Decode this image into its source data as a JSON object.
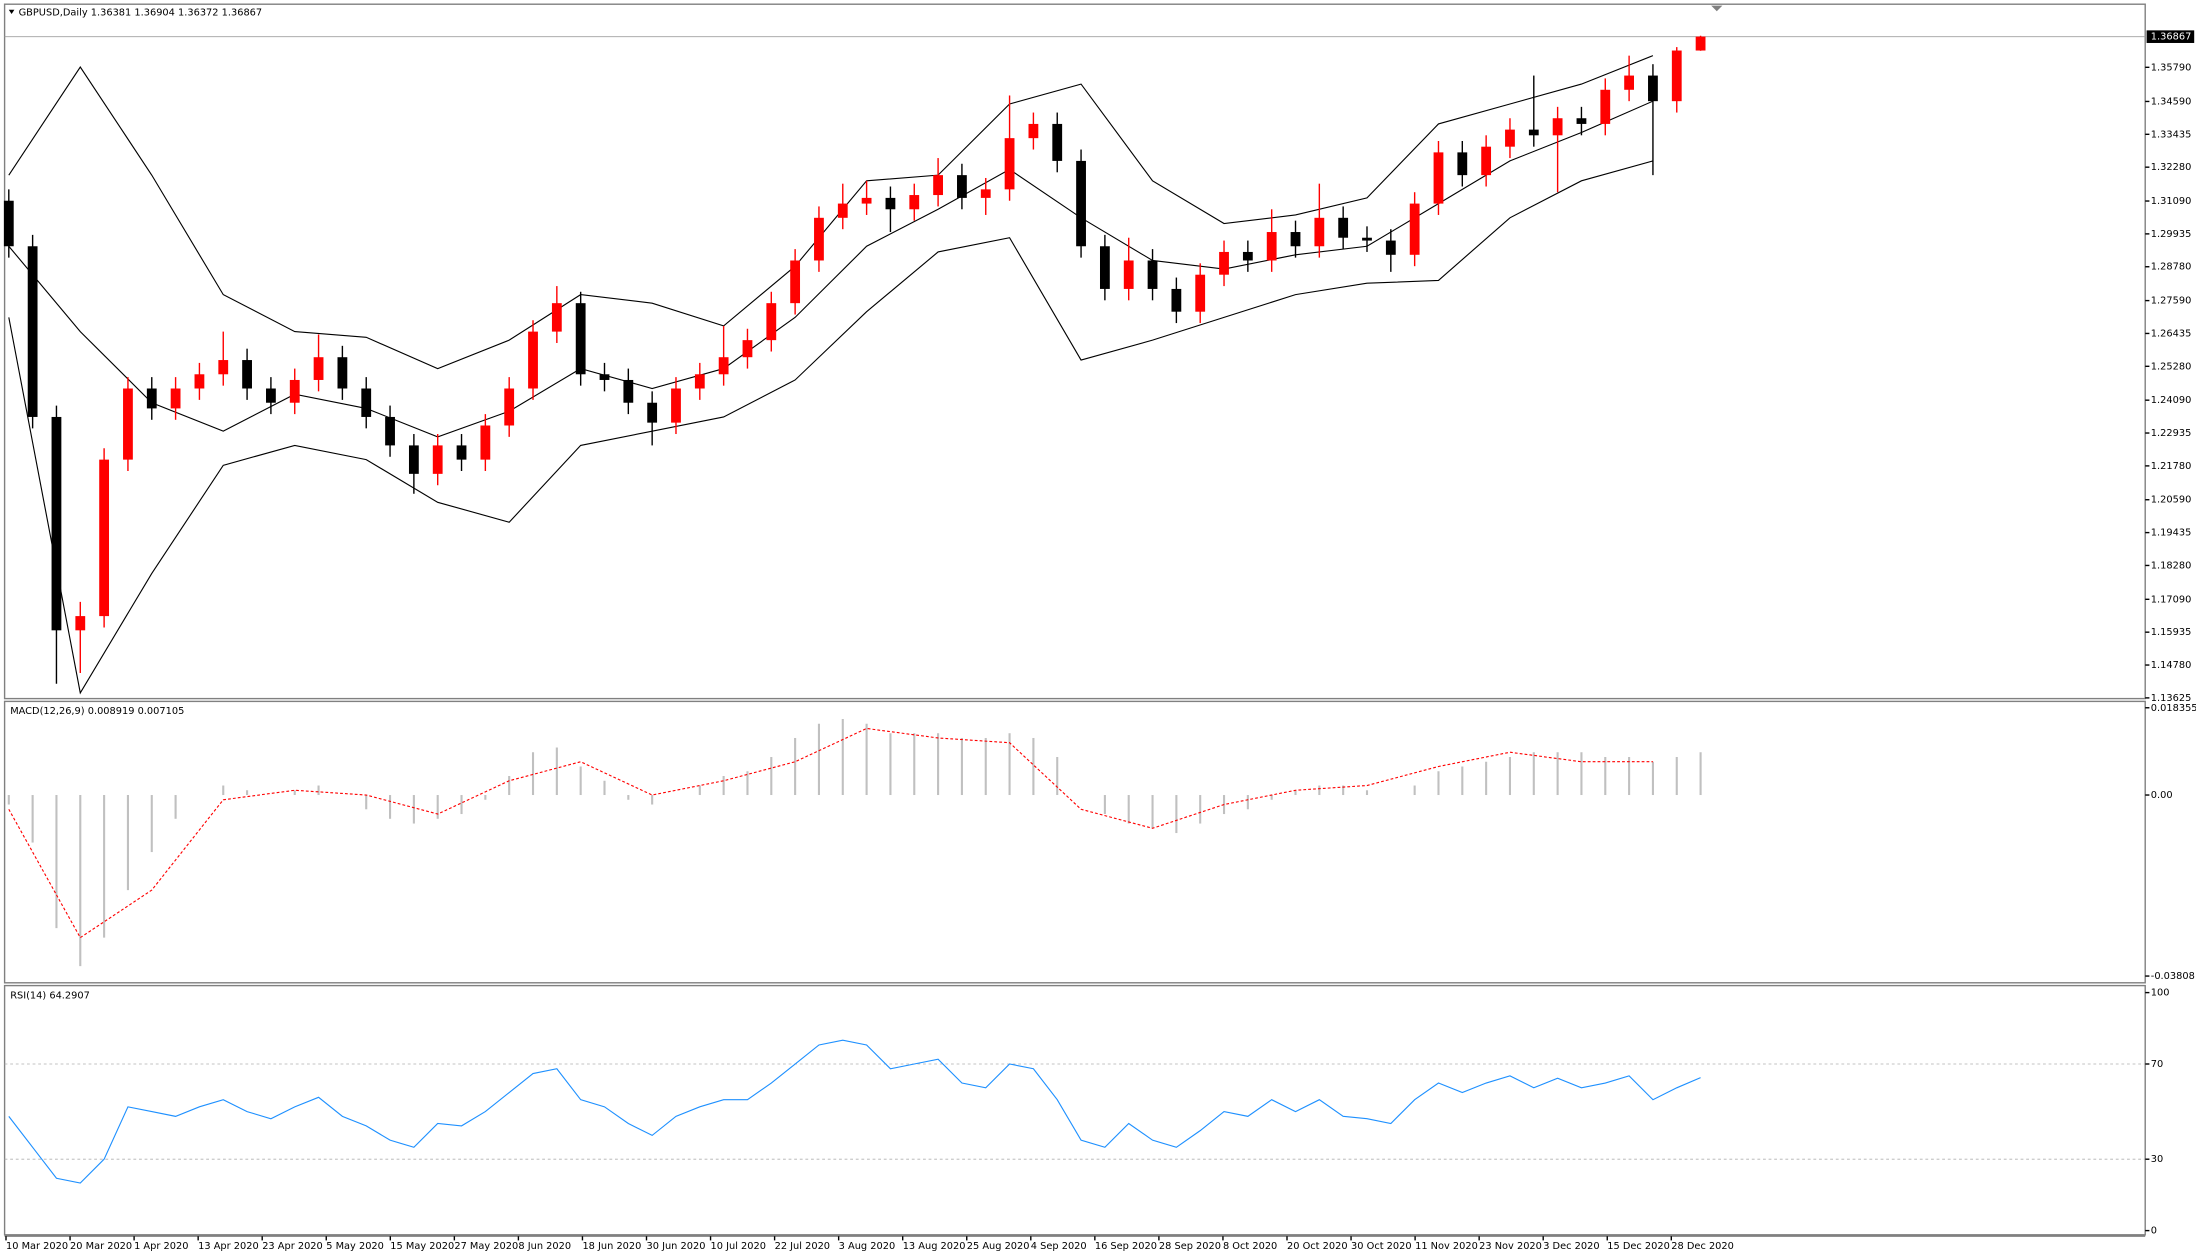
{
  "chart_data": [
    {
      "type": "candlestick",
      "title": "GBPUSD,Daily  1.36381 1.36904 1.36372 1.36867",
      "up_color": "#ff0000",
      "down_color": "#000000",
      "ylim": [
        1.136,
        1.3791
      ],
      "yticks": [
        {
          "value": 1.3579,
          "label": "1.35790"
        },
        {
          "value": 1.3459,
          "label": "1.34590"
        },
        1.33435,
        {
          "value": 1.3228,
          "label": "1.32280"
        },
        {
          "value": 1.3109,
          "label": "1.31090"
        },
        1.29935,
        {
          "value": 1.2878,
          "label": "1.28780"
        },
        {
          "value": 1.2759,
          "label": "1.27590"
        },
        1.26435,
        {
          "value": 1.2528,
          "label": "1.25280"
        },
        {
          "value": 1.2409,
          "label": "1.24090"
        },
        1.22935,
        {
          "value": 1.2178,
          "label": "1.21780"
        },
        {
          "value": 1.2059,
          "label": "1.20590"
        },
        1.19435,
        {
          "value": 1.1828,
          "label": "1.18280"
        },
        {
          "value": 1.1709,
          "label": "1.17090"
        },
        1.15935,
        {
          "value": 1.1478,
          "label": "1.14780"
        },
        1.13625
      ],
      "last_price": 1.36867,
      "candles": [
        [
          1.311,
          1.315,
          1.291,
          1.295
        ],
        [
          1.295,
          1.299,
          1.231,
          1.235
        ],
        [
          1.235,
          1.239,
          1.1412,
          1.16
        ],
        [
          1.16,
          1.17,
          1.145,
          1.165
        ],
        [
          1.165,
          1.224,
          1.161,
          1.22
        ],
        [
          1.22,
          1.249,
          1.216,
          1.245
        ],
        [
          1.245,
          1.249,
          1.234,
          1.238
        ],
        [
          1.238,
          1.249,
          1.234,
          1.245
        ],
        [
          1.245,
          1.254,
          1.241,
          1.25
        ],
        [
          1.25,
          1.265,
          1.246,
          1.255
        ],
        [
          1.255,
          1.259,
          1.241,
          1.245
        ],
        [
          1.245,
          1.249,
          1.236,
          1.24
        ],
        [
          1.24,
          1.252,
          1.236,
          1.248
        ],
        [
          1.248,
          1.264,
          1.244,
          1.256
        ],
        [
          1.256,
          1.26,
          1.241,
          1.245
        ],
        [
          1.245,
          1.249,
          1.231,
          1.235
        ],
        [
          1.235,
          1.239,
          1.221,
          1.225
        ],
        [
          1.225,
          1.229,
          1.208,
          1.215
        ],
        [
          1.215,
          1.229,
          1.211,
          1.225
        ],
        [
          1.225,
          1.229,
          1.216,
          1.22
        ],
        [
          1.22,
          1.236,
          1.216,
          1.232
        ],
        [
          1.232,
          1.249,
          1.228,
          1.245
        ],
        [
          1.245,
          1.269,
          1.241,
          1.265
        ],
        [
          1.265,
          1.281,
          1.261,
          1.275
        ],
        [
          1.275,
          1.279,
          1.246,
          1.25
        ],
        [
          1.25,
          1.254,
          1.244,
          1.248
        ],
        [
          1.248,
          1.252,
          1.236,
          1.24
        ],
        [
          1.24,
          1.244,
          1.225,
          1.233
        ],
        [
          1.233,
          1.249,
          1.229,
          1.245
        ],
        [
          1.245,
          1.254,
          1.241,
          1.25
        ],
        [
          1.25,
          1.267,
          1.246,
          1.256
        ],
        [
          1.256,
          1.266,
          1.252,
          1.262
        ],
        [
          1.262,
          1.279,
          1.258,
          1.275
        ],
        [
          1.275,
          1.294,
          1.271,
          1.29
        ],
        [
          1.29,
          1.309,
          1.286,
          1.305
        ],
        [
          1.305,
          1.317,
          1.301,
          1.31
        ],
        [
          1.31,
          1.318,
          1.306,
          1.312
        ],
        [
          1.312,
          1.316,
          1.3,
          1.308
        ],
        [
          1.308,
          1.317,
          1.304,
          1.313
        ],
        [
          1.313,
          1.326,
          1.309,
          1.32
        ],
        [
          1.32,
          1.324,
          1.308,
          1.312
        ],
        [
          1.312,
          1.319,
          1.306,
          1.315
        ],
        [
          1.315,
          1.348,
          1.311,
          1.333
        ],
        [
          1.333,
          1.342,
          1.329,
          1.338
        ],
        [
          1.338,
          1.342,
          1.321,
          1.325
        ],
        [
          1.325,
          1.329,
          1.291,
          1.295
        ],
        [
          1.295,
          1.299,
          1.276,
          1.28
        ],
        [
          1.28,
          1.298,
          1.276,
          1.29
        ],
        [
          1.29,
          1.294,
          1.276,
          1.28
        ],
        [
          1.28,
          1.284,
          1.268,
          1.272
        ],
        [
          1.272,
          1.289,
          1.268,
          1.285
        ],
        [
          1.285,
          1.297,
          1.281,
          1.293
        ],
        [
          1.293,
          1.297,
          1.286,
          1.29
        ],
        [
          1.29,
          1.308,
          1.286,
          1.3
        ],
        [
          1.3,
          1.304,
          1.291,
          1.295
        ],
        [
          1.295,
          1.317,
          1.291,
          1.305
        ],
        [
          1.305,
          1.309,
          1.294,
          1.298
        ],
        [
          1.298,
          1.302,
          1.293,
          1.297
        ],
        [
          1.297,
          1.301,
          1.286,
          1.292
        ],
        [
          1.292,
          1.314,
          1.288,
          1.31
        ],
        [
          1.31,
          1.332,
          1.306,
          1.328
        ],
        [
          1.328,
          1.332,
          1.316,
          1.32
        ],
        [
          1.32,
          1.334,
          1.316,
          1.33
        ],
        [
          1.33,
          1.34,
          1.326,
          1.336
        ],
        [
          1.336,
          1.355,
          1.33,
          1.334
        ],
        [
          1.334,
          1.344,
          1.314,
          1.34
        ],
        [
          1.34,
          1.344,
          1.334,
          1.338
        ],
        [
          1.338,
          1.354,
          1.334,
          1.35
        ],
        [
          1.35,
          1.362,
          1.346,
          1.355
        ],
        [
          1.355,
          1.359,
          1.32,
          1.346
        ],
        [
          1.346,
          1.365,
          1.342,
          1.3638
        ],
        [
          1.3638,
          1.369,
          1.3637,
          1.3687
        ]
      ],
      "bands": {
        "color": "#000000",
        "upper": [
          1.32,
          1.358,
          1.32,
          1.278,
          1.265,
          1.263,
          1.252,
          1.262,
          1.278,
          1.275,
          1.267,
          1.288,
          1.318,
          1.32,
          1.345,
          1.352,
          1.318,
          1.303,
          1.306,
          1.312,
          1.338,
          1.345,
          1.352,
          1.362
        ],
        "middle": [
          1.295,
          1.265,
          1.24,
          1.23,
          1.243,
          1.238,
          1.228,
          1.237,
          1.252,
          1.245,
          1.252,
          1.27,
          1.295,
          1.308,
          1.322,
          1.305,
          1.29,
          1.287,
          1.292,
          1.295,
          1.31,
          1.325,
          1.335,
          1.346
        ],
        "lower": [
          1.27,
          1.138,
          1.18,
          1.218,
          1.225,
          1.22,
          1.205,
          1.198,
          1.225,
          1.23,
          1.235,
          1.248,
          1.272,
          1.293,
          1.298,
          1.255,
          1.262,
          1.27,
          1.278,
          1.282,
          1.283,
          1.305,
          1.318,
          1.325
        ]
      }
    },
    {
      "type": "bar",
      "title": "MACD(12,26,9) 0.008919 0.007105",
      "color": "#c0c0c0",
      "signal_color": "#ff0000",
      "ylim": [
        -0.0395,
        0.0194
      ],
      "yticks": [
        0.018355,
        {
          "value": 0,
          "label": "0.00"
        },
        -0.03808
      ],
      "values": [
        -0.002,
        -0.01,
        -0.028,
        -0.036,
        -0.03,
        -0.02,
        -0.012,
        -0.005,
        0.0,
        0.002,
        0.001,
        0.0,
        0.001,
        0.002,
        0.0,
        -0.003,
        -0.005,
        -0.006,
        -0.005,
        -0.004,
        -0.001,
        0.004,
        0.009,
        0.01,
        0.006,
        0.003,
        -0.001,
        -0.002,
        0.0,
        0.002,
        0.004,
        0.005,
        0.008,
        0.012,
        0.015,
        0.016,
        0.015,
        0.013,
        0.013,
        0.013,
        0.012,
        0.012,
        0.013,
        0.012,
        0.008,
        0.0,
        -0.004,
        -0.006,
        -0.007,
        -0.008,
        -0.006,
        -0.004,
        -0.003,
        -0.001,
        0.001,
        0.002,
        0.002,
        0.001,
        0.0,
        0.002,
        0.005,
        0.006,
        0.007,
        0.008,
        0.009,
        0.009,
        0.009,
        0.008,
        0.008,
        0.007,
        0.008,
        0.009
      ],
      "signal": [
        -0.003,
        -0.03,
        -0.02,
        -0.001,
        0.001,
        0.0,
        -0.004,
        0.003,
        0.007,
        0.0,
        0.003,
        0.007,
        0.014,
        0.012,
        0.011,
        -0.003,
        -0.007,
        -0.002,
        0.001,
        0.002,
        0.006,
        0.009,
        0.007,
        0.007
      ]
    },
    {
      "type": "line",
      "title": "RSI(14) 64.2907",
      "color": "#1e90ff",
      "ylim": [
        0,
        100
      ],
      "yticks": [
        100,
        70,
        30,
        0
      ],
      "levels": [
        70,
        30
      ],
      "values": [
        48,
        35,
        22,
        20,
        30,
        52,
        50,
        48,
        52,
        55,
        50,
        47,
        52,
        56,
        48,
        44,
        38,
        35,
        45,
        44,
        50,
        58,
        66,
        68,
        55,
        52,
        45,
        40,
        48,
        52,
        55,
        55,
        62,
        70,
        78,
        80,
        78,
        68,
        70,
        72,
        62,
        60,
        70,
        68,
        55,
        38,
        35,
        45,
        38,
        35,
        42,
        50,
        48,
        55,
        50,
        55,
        48,
        47,
        45,
        55,
        62,
        58,
        62,
        65,
        60,
        64,
        60,
        62,
        65,
        55,
        60,
        64.29
      ]
    }
  ],
  "time_axis": [
    "10 Mar 2020",
    "20 Mar 2020",
    "1 Apr 2020",
    "13 Apr 2020",
    "23 Apr 2020",
    "5 May 2020",
    "15 May 2020",
    "27 May 2020",
    "8 Jun 2020",
    "18 Jun 2020",
    "30 Jun 2020",
    "10 Jul 2020",
    "22 Jul 2020",
    "3 Aug 2020",
    "13 Aug 2020",
    "25 Aug 2020",
    "4 Sep 2020",
    "16 Sep 2020",
    "28 Sep 2020",
    "8 Oct 2020",
    "20 Oct 2020",
    "30 Oct 2020",
    "11 Nov 2020",
    "23 Nov 2020",
    "3 Dec 2020",
    "15 Dec 2020",
    "28 Dec 2020"
  ]
}
